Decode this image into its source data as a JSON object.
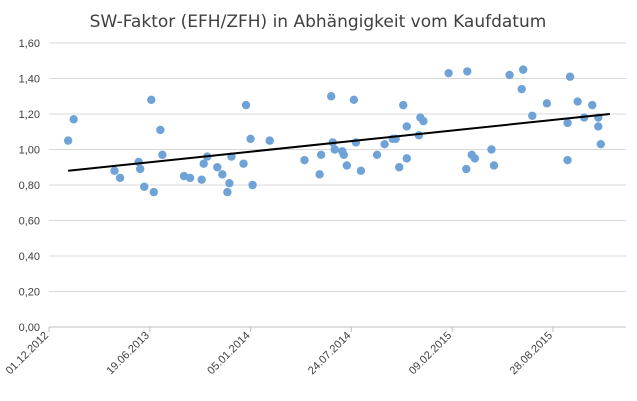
{
  "chart_data": {
    "type": "scatter",
    "title": "SW-Faktor (EFH/ZFH) in Abhängigkeit vom Kaufdatum",
    "xlabel": "",
    "ylabel": "",
    "x_axis": {
      "type": "date",
      "range": [
        "2012-12-01",
        "2016-01-20"
      ],
      "tick_labels": [
        "01.12.2012",
        "19.06.2013",
        "05.01.2014",
        "24.07.2014",
        "09.02.2015",
        "28.08.2015"
      ]
    },
    "y_axis": {
      "range": [
        0,
        1.6
      ],
      "tick_labels": [
        "0,00",
        "0,20",
        "0,40",
        "0,60",
        "0,80",
        "1,00",
        "1,20",
        "1,40",
        "1,60"
      ]
    },
    "grid": {
      "horizontal": true,
      "vertical": false
    },
    "legend": "none",
    "colors": {
      "points": "#6fa3d8",
      "trendline": "#000000",
      "grid": "#d9d9d9",
      "axis": "#bfbfbf",
      "text": "#404040"
    },
    "trendline": {
      "type": "linear",
      "from": {
        "x": "2013-01-08",
        "y": 0.88
      },
      "to": {
        "x": "2015-12-19",
        "y": 1.2
      }
    },
    "points": [
      {
        "x": "2013-01-08",
        "y": 1.05
      },
      {
        "x": "2013-01-19",
        "y": 1.17
      },
      {
        "x": "2013-04-10",
        "y": 0.88
      },
      {
        "x": "2013-04-21",
        "y": 0.84
      },
      {
        "x": "2013-05-28",
        "y": 0.93
      },
      {
        "x": "2013-05-31",
        "y": 0.89
      },
      {
        "x": "2013-06-08",
        "y": 0.79
      },
      {
        "x": "2013-06-22",
        "y": 1.28
      },
      {
        "x": "2013-06-27",
        "y": 0.76
      },
      {
        "x": "2013-07-14",
        "y": 0.97
      },
      {
        "x": "2013-07-10",
        "y": 1.11
      },
      {
        "x": "2013-08-26",
        "y": 0.85
      },
      {
        "x": "2013-09-07",
        "y": 0.84
      },
      {
        "x": "2013-09-30",
        "y": 0.83
      },
      {
        "x": "2013-10-04",
        "y": 0.92
      },
      {
        "x": "2013-10-11",
        "y": 0.96
      },
      {
        "x": "2013-10-31",
        "y": 0.9
      },
      {
        "x": "2013-11-10",
        "y": 0.86
      },
      {
        "x": "2013-11-20",
        "y": 0.76
      },
      {
        "x": "2013-11-24",
        "y": 0.81
      },
      {
        "x": "2013-11-28",
        "y": 0.96
      },
      {
        "x": "2013-12-22",
        "y": 0.92
      },
      {
        "x": "2013-12-27",
        "y": 1.25
      },
      {
        "x": "2014-01-05",
        "y": 1.06
      },
      {
        "x": "2014-01-09",
        "y": 0.8
      },
      {
        "x": "2014-02-12",
        "y": 1.05
      },
      {
        "x": "2014-04-22",
        "y": 0.94
      },
      {
        "x": "2014-05-22",
        "y": 0.86
      },
      {
        "x": "2014-05-25",
        "y": 0.97
      },
      {
        "x": "2014-06-14",
        "y": 1.3
      },
      {
        "x": "2014-06-17",
        "y": 1.04
      },
      {
        "x": "2014-06-21",
        "y": 1.0
      },
      {
        "x": "2014-07-06",
        "y": 0.99
      },
      {
        "x": "2014-07-09",
        "y": 0.97
      },
      {
        "x": "2014-07-15",
        "y": 0.91
      },
      {
        "x": "2014-07-29",
        "y": 1.28
      },
      {
        "x": "2014-08-02",
        "y": 1.04
      },
      {
        "x": "2014-08-12",
        "y": 0.88
      },
      {
        "x": "2014-09-13",
        "y": 0.97
      },
      {
        "x": "2014-09-28",
        "y": 1.03
      },
      {
        "x": "2014-10-14",
        "y": 1.06
      },
      {
        "x": "2014-10-20",
        "y": 1.06
      },
      {
        "x": "2014-10-27",
        "y": 0.9
      },
      {
        "x": "2014-11-04",
        "y": 1.25
      },
      {
        "x": "2014-11-11",
        "y": 1.13
      },
      {
        "x": "2014-11-11",
        "y": 0.95
      },
      {
        "x": "2014-12-05",
        "y": 1.08
      },
      {
        "x": "2014-12-08",
        "y": 1.18
      },
      {
        "x": "2014-12-14",
        "y": 1.16
      },
      {
        "x": "2015-02-02",
        "y": 1.43
      },
      {
        "x": "2015-03-09",
        "y": 0.89
      },
      {
        "x": "2015-03-11",
        "y": 1.44
      },
      {
        "x": "2015-03-20",
        "y": 0.97
      },
      {
        "x": "2015-03-26",
        "y": 0.95
      },
      {
        "x": "2015-04-28",
        "y": 1.0
      },
      {
        "x": "2015-05-03",
        "y": 0.91
      },
      {
        "x": "2015-06-03",
        "y": 1.42
      },
      {
        "x": "2015-06-27",
        "y": 1.34
      },
      {
        "x": "2015-06-30",
        "y": 1.45
      },
      {
        "x": "2015-07-18",
        "y": 1.19
      },
      {
        "x": "2015-08-16",
        "y": 1.26
      },
      {
        "x": "2015-09-26",
        "y": 0.94
      },
      {
        "x": "2015-09-26",
        "y": 1.15
      },
      {
        "x": "2015-10-01",
        "y": 1.41
      },
      {
        "x": "2015-10-16",
        "y": 1.27
      },
      {
        "x": "2015-10-29",
        "y": 1.18
      },
      {
        "x": "2015-11-14",
        "y": 1.25
      },
      {
        "x": "2015-11-26",
        "y": 1.18
      },
      {
        "x": "2015-11-26",
        "y": 1.13
      },
      {
        "x": "2015-12-01",
        "y": 1.03
      }
    ]
  }
}
